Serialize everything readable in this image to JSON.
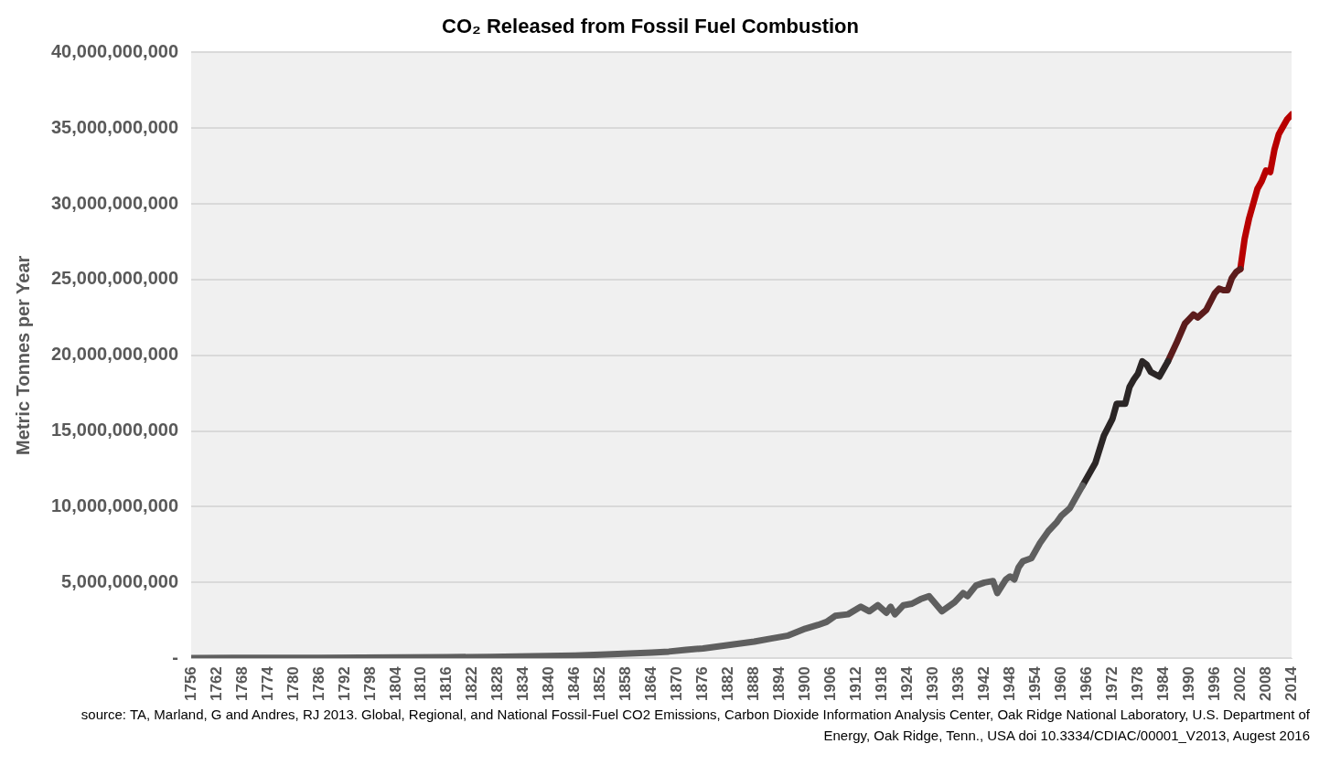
{
  "chart_data": {
    "type": "line",
    "title": "CO₂ Released from Fossil Fuel Combustion",
    "ylabel": "Metric Tonnes per Year",
    "xlim": [
      1756,
      2014
    ],
    "xticks": [
      1756,
      1762,
      1768,
      1774,
      1780,
      1786,
      1792,
      1798,
      1804,
      1810,
      1816,
      1822,
      1828,
      1834,
      1840,
      1846,
      1852,
      1858,
      1864,
      1870,
      1876,
      1882,
      1888,
      1894,
      1900,
      1906,
      1912,
      1918,
      1924,
      1930,
      1936,
      1942,
      1948,
      1954,
      1960,
      1966,
      1972,
      1978,
      1984,
      1990,
      1996,
      2002,
      2008,
      2014
    ],
    "ylim": [
      0,
      40000000000
    ],
    "yticks": [
      {
        "value": 0,
        "label": "-"
      },
      {
        "value": 5000000000,
        "label": "5,000,000,000"
      },
      {
        "value": 10000000000,
        "label": "10,000,000,000"
      },
      {
        "value": 15000000000,
        "label": "15,000,000,000"
      },
      {
        "value": 20000000000,
        "label": "20,000,000,000"
      },
      {
        "value": 25000000000,
        "label": "25,000,000,000"
      },
      {
        "value": 30000000000,
        "label": "30,000,000,000"
      },
      {
        "value": 35000000000,
        "label": "35,000,000,000"
      },
      {
        "value": 40000000000,
        "label": "40,000,000,000"
      }
    ],
    "grid": "y",
    "legend": false,
    "marker": "none",
    "line_style": "solid",
    "series": [
      {
        "color": "#5f5f5f",
        "x": [
          1756,
          1766,
          1776,
          1786,
          1796,
          1806,
          1816,
          1826,
          1836,
          1846,
          1852,
          1856,
          1860,
          1864,
          1868,
          1872,
          1876,
          1880,
          1884,
          1888,
          1892,
          1896,
          1900,
          1903,
          1905,
          1907,
          1910,
          1913,
          1915,
          1917,
          1919,
          1920,
          1921,
          1923,
          1925,
          1927,
          1929,
          1932,
          1935,
          1937,
          1938,
          1940,
          1942,
          1944,
          1945,
          1947,
          1948,
          1949,
          1950,
          1951,
          1953,
          1955,
          1957,
          1959,
          1960,
          1962,
          1964,
          1965
        ],
        "values": [
          10000000,
          20000000,
          20000000,
          30000000,
          40000000,
          50000000,
          70000000,
          90000000,
          130000000,
          180000000,
          230000000,
          280000000,
          330000000,
          380000000,
          440000000,
          550000000,
          650000000,
          800000000,
          950000000,
          1100000000,
          1300000000,
          1500000000,
          1950000000,
          2200000000,
          2400000000,
          2800000000,
          2900000000,
          3400000000,
          3100000000,
          3500000000,
          3000000000,
          3400000000,
          2900000000,
          3500000000,
          3600000000,
          3900000000,
          4100000000,
          3100000000,
          3700000000,
          4300000000,
          4100000000,
          4800000000,
          5000000000,
          5100000000,
          4300000000,
          5200000000,
          5400000000,
          5200000000,
          6000000000,
          6400000000,
          6600000000,
          7600000000,
          8400000000,
          9000000000,
          9400000000,
          9900000000,
          10900000000,
          11400000000
        ]
      },
      {
        "color": "#2b2626",
        "x": [
          1965,
          1966,
          1968,
          1970,
          1972,
          1973,
          1975,
          1976,
          1977,
          1978,
          1979,
          1980,
          1981,
          1983,
          1985
        ],
        "values": [
          11400000000,
          11900000000,
          12900000000,
          14700000000,
          15800000000,
          16800000000,
          16800000000,
          17900000000,
          18400000000,
          18800000000,
          19600000000,
          19400000000,
          18900000000,
          18600000000,
          19600000000
        ]
      },
      {
        "color": "#5c1c1c",
        "x": [
          1985,
          1987,
          1989,
          1990,
          1991,
          1992,
          1994,
          1996,
          1997,
          1998,
          1999,
          2000,
          2001,
          2002
        ],
        "values": [
          19600000000,
          20800000000,
          22100000000,
          22400000000,
          22700000000,
          22500000000,
          23000000000,
          24100000000,
          24400000000,
          24300000000,
          24300000000,
          25100000000,
          25500000000,
          25700000000
        ]
      },
      {
        "color": "#b80000",
        "x": [
          2002,
          2003,
          2004,
          2005,
          2006,
          2007,
          2008,
          2009,
          2010,
          2011,
          2012,
          2013,
          2014
        ],
        "values": [
          25700000000,
          27700000000,
          29000000000,
          30000000000,
          31000000000,
          31500000000,
          32200000000,
          32100000000,
          33600000000,
          34600000000,
          35100000000,
          35600000000,
          35900000000
        ]
      }
    ],
    "annotations": [
      "source: TA, Marland, G and Andres, RJ 2013. Global, Regional, and National Fossil-Fuel CO2 Emissions, Carbon Dioxide Information Analysis Center, Oak Ridge National Laboratory, U.S. Department of Energy, Oak Ridge, Tenn., USA doi 10.3334/CDIAC/00001_V2013, Augest 2016"
    ]
  }
}
